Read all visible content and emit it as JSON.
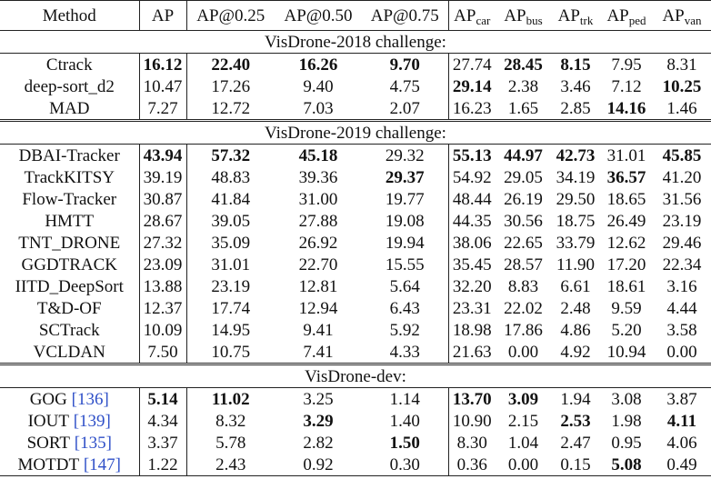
{
  "table": {
    "columns": [
      {
        "text": "Method"
      },
      {
        "text": "AP"
      },
      {
        "text": "AP@0.25"
      },
      {
        "text": "AP@0.50"
      },
      {
        "text": "AP@0.75"
      },
      {
        "text": "AP",
        "sub": "car"
      },
      {
        "text": "AP",
        "sub": "bus"
      },
      {
        "text": "AP",
        "sub": "trk"
      },
      {
        "text": "AP",
        "sub": "ped"
      },
      {
        "text": "AP",
        "sub": "van"
      }
    ],
    "sections": [
      {
        "title": "VisDrone-2018 challenge:",
        "rows": [
          {
            "method": "Ctrack",
            "cells": [
              "16.12",
              "22.40",
              "16.26",
              "9.70",
              "27.74",
              "28.45",
              "8.15",
              "7.95",
              "8.31"
            ],
            "bold": [
              0,
              1,
              2,
              3,
              5,
              6
            ]
          },
          {
            "method": "deep-sort_d2",
            "cells": [
              "10.47",
              "17.26",
              "9.40",
              "4.75",
              "29.14",
              "2.38",
              "3.46",
              "7.12",
              "10.25"
            ],
            "bold": [
              4,
              8
            ]
          },
          {
            "method": "MAD",
            "cells": [
              "7.27",
              "12.72",
              "7.03",
              "2.07",
              "16.23",
              "1.65",
              "2.85",
              "14.16",
              "1.46"
            ],
            "bold": [
              7
            ]
          }
        ]
      },
      {
        "title": "VisDrone-2019 challenge:",
        "rows": [
          {
            "method": "DBAI-Tracker",
            "cells": [
              "43.94",
              "57.32",
              "45.18",
              "29.32",
              "55.13",
              "44.97",
              "42.73",
              "31.01",
              "45.85"
            ],
            "bold": [
              0,
              1,
              2,
              4,
              5,
              6,
              8
            ]
          },
          {
            "method": "TrackKITSY",
            "cells": [
              "39.19",
              "48.83",
              "39.36",
              "29.37",
              "54.92",
              "29.05",
              "34.19",
              "36.57",
              "41.20"
            ],
            "bold": [
              3,
              7
            ]
          },
          {
            "method": "Flow-Tracker",
            "cells": [
              "30.87",
              "41.84",
              "31.00",
              "19.77",
              "48.44",
              "26.19",
              "29.50",
              "18.65",
              "31.56"
            ]
          },
          {
            "method": "HMTT",
            "cells": [
              "28.67",
              "39.05",
              "27.88",
              "19.08",
              "44.35",
              "30.56",
              "18.75",
              "26.49",
              "23.19"
            ]
          },
          {
            "method": "TNT_DRONE",
            "cells": [
              "27.32",
              "35.09",
              "26.92",
              "19.94",
              "38.06",
              "22.65",
              "33.79",
              "12.62",
              "29.46"
            ]
          },
          {
            "method": "GGDTRACK",
            "cells": [
              "23.09",
              "31.01",
              "22.70",
              "15.55",
              "35.45",
              "28.57",
              "11.90",
              "17.20",
              "22.34"
            ]
          },
          {
            "method": "IITD_DeepSort",
            "cells": [
              "13.88",
              "23.19",
              "12.81",
              "5.64",
              "32.20",
              "8.83",
              "6.61",
              "18.61",
              "3.16"
            ]
          },
          {
            "method": "T&D-OF",
            "cells": [
              "12.37",
              "17.74",
              "12.94",
              "6.43",
              "23.31",
              "22.02",
              "2.48",
              "9.59",
              "4.44"
            ]
          },
          {
            "method": "SCTrack",
            "cells": [
              "10.09",
              "14.95",
              "9.41",
              "5.92",
              "18.98",
              "17.86",
              "4.86",
              "5.20",
              "3.58"
            ]
          },
          {
            "method": "VCLDAN",
            "cells": [
              "7.50",
              "10.75",
              "7.41",
              "4.33",
              "21.63",
              "0.00",
              "4.92",
              "10.94",
              "0.00"
            ]
          }
        ]
      },
      {
        "title": "VisDrone-dev:",
        "rows": [
          {
            "method": "GOG",
            "ref": "[136]",
            "cells": [
              "5.14",
              "11.02",
              "3.25",
              "1.14",
              "13.70",
              "3.09",
              "1.94",
              "3.08",
              "3.87"
            ],
            "bold": [
              0,
              1,
              4,
              5
            ]
          },
          {
            "method": "IOUT",
            "ref": "[139]",
            "cells": [
              "4.34",
              "8.32",
              "3.29",
              "1.40",
              "10.90",
              "2.15",
              "2.53",
              "1.98",
              "4.11"
            ],
            "bold": [
              2,
              6,
              8
            ]
          },
          {
            "method": "SORT",
            "ref": "[135]",
            "cells": [
              "3.37",
              "5.78",
              "2.82",
              "1.50",
              "8.30",
              "1.04",
              "2.47",
              "0.95",
              "4.06"
            ],
            "bold": [
              3
            ]
          },
          {
            "method": "MOTDT",
            "ref": "[147]",
            "cells": [
              "1.22",
              "2.43",
              "0.92",
              "0.30",
              "0.36",
              "0.00",
              "0.15",
              "5.08",
              "0.49"
            ],
            "bold": [
              7
            ]
          }
        ]
      }
    ]
  }
}
